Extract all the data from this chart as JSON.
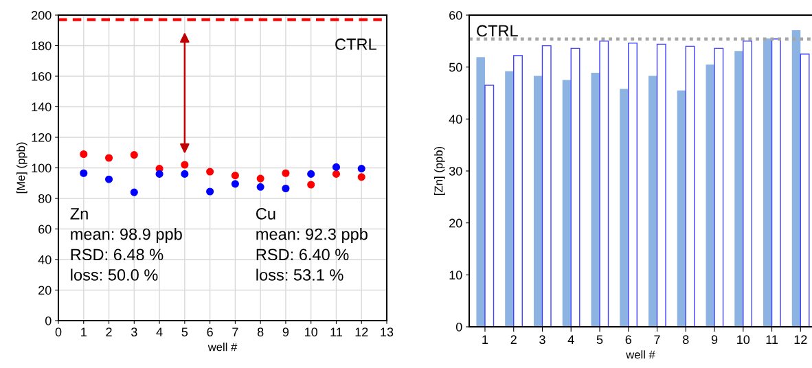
{
  "chart_data": [
    {
      "type": "scatter",
      "xlabel": "well #",
      "ylabel": "[Me] (ppb)",
      "xlim": [
        0,
        13
      ],
      "xticks": [
        0,
        1,
        2,
        3,
        4,
        5,
        6,
        7,
        8,
        9,
        10,
        11,
        12,
        13
      ],
      "ylim": [
        0,
        200
      ],
      "yticks": [
        0,
        20,
        40,
        60,
        80,
        100,
        120,
        140,
        160,
        180,
        200
      ],
      "grid": true,
      "marker": "circle",
      "series": [
        {
          "color": "#ff0000",
          "x": [
            1,
            2,
            3,
            4,
            5,
            6,
            7,
            8,
            9,
            10,
            11,
            12
          ],
          "values": [
            109,
            106.5,
            108.5,
            99.5,
            102,
            97.5,
            95,
            93,
            96.5,
            89,
            96,
            94
          ]
        },
        {
          "color": "#0000ff",
          "x": [
            1,
            2,
            3,
            4,
            5,
            6,
            7,
            8,
            9,
            10,
            11,
            12
          ],
          "values": [
            96.5,
            92.5,
            84,
            96,
            96,
            84.5,
            89.5,
            87.5,
            86.5,
            96,
            100.5,
            99.5
          ]
        }
      ],
      "ref_lines": [
        {
          "axis": "y",
          "value": 197,
          "label": "CTRL",
          "color": "#ff0000",
          "line_style": "dashed"
        }
      ],
      "annotations": [
        "Zn\nmean: 98.9 ppb\nRSD: 6.48 %\nloss: 50.0 %",
        "Cu\nmean: 92.3 ppb\nRSD: 6.40 %\nloss: 53.1 %"
      ]
    },
    {
      "type": "bar",
      "xlabel": "well #",
      "ylabel": "[Zn] (ppb)",
      "categories": [
        "1",
        "2",
        "3",
        "4",
        "5",
        "6",
        "7",
        "8",
        "9",
        "10",
        "11",
        "12"
      ],
      "ylim": [
        0,
        60
      ],
      "yticks": [
        0,
        10,
        20,
        30,
        40,
        50,
        60
      ],
      "grid": false,
      "series": [
        {
          "color": "#8db3e2",
          "values": [
            51.9,
            49.2,
            48.3,
            47.5,
            48.9,
            45.8,
            48.3,
            45.5,
            50.5,
            53.1,
            55.5,
            57.1
          ]
        },
        {
          "color": "#3f3fff",
          "values": [
            46.5,
            52.2,
            54.1,
            53.6,
            55.0,
            54.6,
            54.4,
            54.0,
            53.6,
            55.0,
            55.4,
            52.5
          ]
        }
      ],
      "ref_lines": [
        {
          "axis": "y",
          "value": 55.4,
          "label": "CTRL",
          "color": "#a6a6a6",
          "line_style": "dotted"
        }
      ]
    }
  ]
}
